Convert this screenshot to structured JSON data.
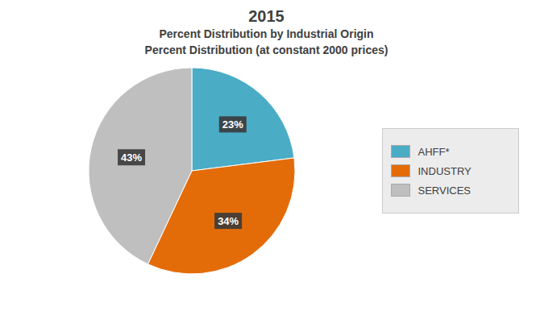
{
  "chart_data": {
    "type": "pie",
    "title": "2015",
    "subtitle": "Percent Distribution by Industrial Origin",
    "annotations": [
      "Percent Distribution (at constant 2000 prices)"
    ],
    "categories": [
      "AHFF*",
      "INDUSTRY",
      "SERVICES"
    ],
    "values": [
      23,
      34,
      43
    ],
    "value_labels": [
      "23%",
      "34%",
      "43%"
    ],
    "colors": [
      "#4BACC6",
      "#E36C09",
      "#BFBFBF"
    ],
    "data_labels": true,
    "legend": "right"
  }
}
